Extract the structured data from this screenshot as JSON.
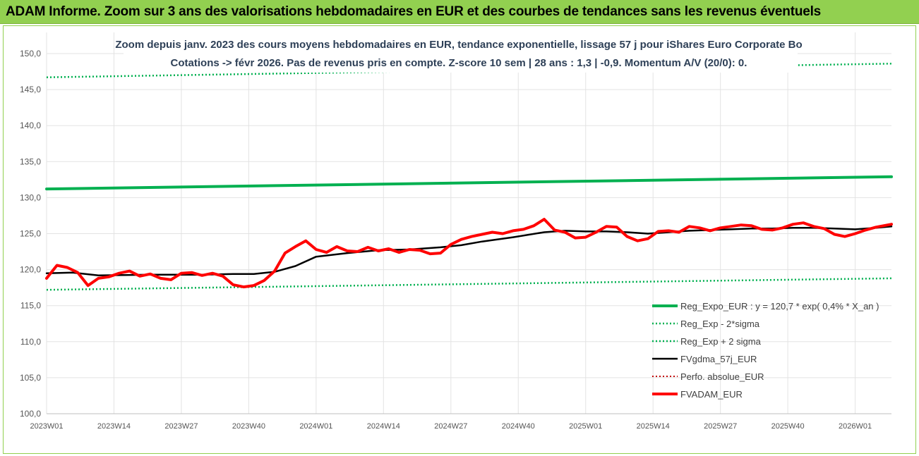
{
  "banner": {
    "title": "ADAM Informe. Zoom sur 3 ans des valorisations hebdomadaires en EUR et des courbes de tendances sans les revenus éventuels"
  },
  "chart_data": {
    "type": "line",
    "title_line1": "Zoom depuis janv. 2023 des cours moyens hebdomadaires en EUR, tendance exponentielle, lissage 57 j pour iShares Euro Corporate Bo",
    "title_line2": "Cotations -> févr 2026. Pas de revenus pris en compte. Z-score 10 sem | 28 ans : 1,3 | -0,9. Momentum A/V (20/0): 0.",
    "ylim": [
      100,
      150
    ],
    "yticks": [
      "100,0",
      "105,0",
      "110,0",
      "115,0",
      "120,0",
      "125,0",
      "130,0",
      "135,0",
      "140,0",
      "145,0",
      "150,0"
    ],
    "xticks": [
      {
        "label": "2023W01",
        "week": 0
      },
      {
        "label": "2023W14",
        "week": 13
      },
      {
        "label": "2023W27",
        "week": 26
      },
      {
        "label": "2023W40",
        "week": 39
      },
      {
        "label": "2024W01",
        "week": 52
      },
      {
        "label": "2024W14",
        "week": 65
      },
      {
        "label": "2024W27",
        "week": 78
      },
      {
        "label": "2024W40",
        "week": 91
      },
      {
        "label": "2025W01",
        "week": 104
      },
      {
        "label": "2025W14",
        "week": 117
      },
      {
        "label": "2025W27",
        "week": 130
      },
      {
        "label": "2025W40",
        "week": 143
      },
      {
        "label": "2026W01",
        "week": 156
      }
    ],
    "week_count": 163,
    "legend_position": "bottom-right",
    "series": [
      {
        "name": "Reg_Expo_EUR : y = 120,7 * exp( 0,4% *  X_an )",
        "color": "#00b050",
        "style": "solid",
        "width": 4,
        "x": [
          0,
          163
        ],
        "values": [
          131.2,
          132.9
        ]
      },
      {
        "name": "Reg_Exp - 2*sigma",
        "color": "#00b050",
        "style": "dotted",
        "width": 2.5,
        "x": [
          0,
          163
        ],
        "values": [
          117.2,
          118.8
        ]
      },
      {
        "name": "Reg_Exp + 2 sigma",
        "color": "#00b050",
        "style": "dotted",
        "width": 2.5,
        "x": [
          0,
          163
        ],
        "values": [
          146.7,
          148.6
        ]
      },
      {
        "name": "FVgdma_57j_EUR",
        "color": "#000000",
        "style": "solid",
        "width": 2.5,
        "x": [
          0,
          5,
          10,
          20,
          30,
          36,
          40,
          44,
          48,
          52,
          58,
          64,
          70,
          76,
          80,
          84,
          90,
          96,
          100,
          104,
          108,
          112,
          116,
          120,
          124,
          128,
          132,
          136,
          140,
          144,
          148,
          152,
          156,
          160,
          163
        ],
        "values": [
          119.5,
          119.6,
          119.2,
          119.3,
          119.3,
          119.4,
          119.4,
          119.7,
          120.5,
          121.8,
          122.3,
          122.7,
          122.8,
          123.1,
          123.4,
          123.9,
          124.5,
          125.2,
          125.4,
          125.3,
          125.3,
          125.2,
          125.0,
          125.2,
          125.4,
          125.5,
          125.6,
          125.7,
          125.7,
          125.8,
          125.8,
          125.7,
          125.6,
          125.8,
          126.0
        ]
      },
      {
        "name": "Perfo. absolue_EUR",
        "color": "#c00000",
        "style": "dotted",
        "width": 2,
        "x": [],
        "values": []
      },
      {
        "name": "FVADAM_EUR",
        "color": "#ff0000",
        "style": "solid",
        "width": 4,
        "x": [
          0,
          2,
          4,
          6,
          8,
          10,
          12,
          14,
          16,
          18,
          20,
          22,
          24,
          26,
          28,
          30,
          32,
          34,
          36,
          38,
          40,
          42,
          44,
          46,
          48,
          50,
          52,
          54,
          56,
          58,
          60,
          62,
          64,
          66,
          68,
          70,
          72,
          74,
          76,
          78,
          80,
          82,
          84,
          86,
          88,
          90,
          92,
          94,
          96,
          98,
          100,
          102,
          104,
          106,
          108,
          110,
          112,
          114,
          116,
          118,
          120,
          122,
          124,
          126,
          128,
          130,
          132,
          134,
          136,
          138,
          140,
          142,
          144,
          146,
          148,
          150,
          152,
          154,
          156,
          158,
          160,
          163
        ],
        "values": [
          118.8,
          120.6,
          120.3,
          119.6,
          117.8,
          118.8,
          119.0,
          119.5,
          119.8,
          119.1,
          119.4,
          118.8,
          118.6,
          119.5,
          119.6,
          119.2,
          119.5,
          119.1,
          117.9,
          117.6,
          117.8,
          118.5,
          119.8,
          122.3,
          123.2,
          124.0,
          122.8,
          122.4,
          123.2,
          122.6,
          122.5,
          123.1,
          122.6,
          122.9,
          122.4,
          122.8,
          122.7,
          122.2,
          122.3,
          123.5,
          124.2,
          124.6,
          124.9,
          125.2,
          125.0,
          125.4,
          125.6,
          126.1,
          127.0,
          125.5,
          125.2,
          124.4,
          124.5,
          125.2,
          126.0,
          125.9,
          124.6,
          124.0,
          124.3,
          125.3,
          125.4,
          125.2,
          126.0,
          125.8,
          125.4,
          125.8,
          126.0,
          126.2,
          126.1,
          125.6,
          125.5,
          125.8,
          126.3,
          126.5,
          126.0,
          125.7,
          124.9,
          124.6,
          125.0,
          125.5,
          125.9,
          126.3
        ]
      }
    ]
  }
}
